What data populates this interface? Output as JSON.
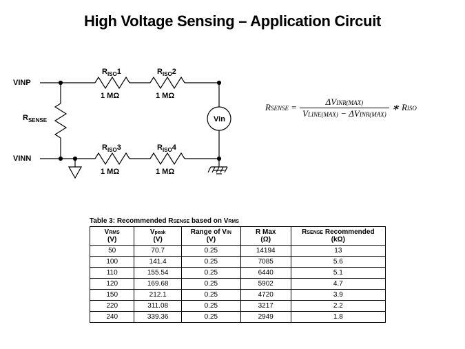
{
  "title": "High Voltage Sensing – Application Circuit",
  "circuit": {
    "labels": {
      "vinp": "VINP",
      "vinn": "VINN",
      "rsense": "R",
      "rsense_sub": "SENSE",
      "vin": "Vin",
      "r1": "R",
      "r1_sub": "ISO",
      "r1_num": "1",
      "r1_val": "1 MΩ",
      "r2": "R",
      "r2_sub": "ISO",
      "r2_num": "2",
      "r2_val": "1 MΩ",
      "r3": "R",
      "r3_sub": "ISO",
      "r3_num": "3",
      "r3_val": "1 MΩ",
      "r4": "R",
      "r4_sub": "ISO",
      "r4_num": "4",
      "r4_val": "1 MΩ"
    },
    "colors": {
      "stroke": "#000000",
      "background": "#ffffff"
    },
    "stroke_width": 1.2
  },
  "formula": {
    "lhs_base": "R",
    "lhs_sub": "SENSE",
    "num_delta": "Δ",
    "num_v": "V",
    "num_sub": "INR(MAX)",
    "den_v1": "V",
    "den_sub1": "LINE(MAX)",
    "den_minus": " − ",
    "den_delta": "Δ",
    "den_v2": "V",
    "den_sub2": "INR(MAX)",
    "rhs_star": " ∗ ",
    "rhs_base": "R",
    "rhs_sub": "ISO"
  },
  "table": {
    "caption_pre": "Table 3: Recommended R",
    "caption_sub1": "SENSE",
    "caption_mid": " based on V",
    "caption_sub2": "RMS",
    "columns": [
      {
        "head": "V",
        "sub": "RMS",
        "unit": "(V)",
        "width": "15%"
      },
      {
        "head": "V",
        "sub": "peak",
        "unit": "(V)",
        "width": "16%"
      },
      {
        "head": "Range of V",
        "sub": "IN",
        "unit": "(V)",
        "width": "20%"
      },
      {
        "head": "R Max",
        "sub": "",
        "unit": "(Ω)",
        "width": "17%"
      },
      {
        "head": "R",
        "sub": "SENSE",
        "tail": " Recommended",
        "unit": "(kΩ)",
        "width": "32%"
      }
    ],
    "rows": [
      [
        "50",
        "70.7",
        "0.25",
        "14194",
        "13"
      ],
      [
        "100",
        "141.4",
        "0.25",
        "7085",
        "5.6"
      ],
      [
        "110",
        "155.54",
        "0.25",
        "6440",
        "5.1"
      ],
      [
        "120",
        "169.68",
        "0.25",
        "5902",
        "4.7"
      ],
      [
        "150",
        "212.1",
        "0.25",
        "4720",
        "3.9"
      ],
      [
        "220",
        "311.08",
        "0.25",
        "3217",
        "2.2"
      ],
      [
        "240",
        "339.36",
        "0.25",
        "2949",
        "1.8"
      ]
    ]
  }
}
